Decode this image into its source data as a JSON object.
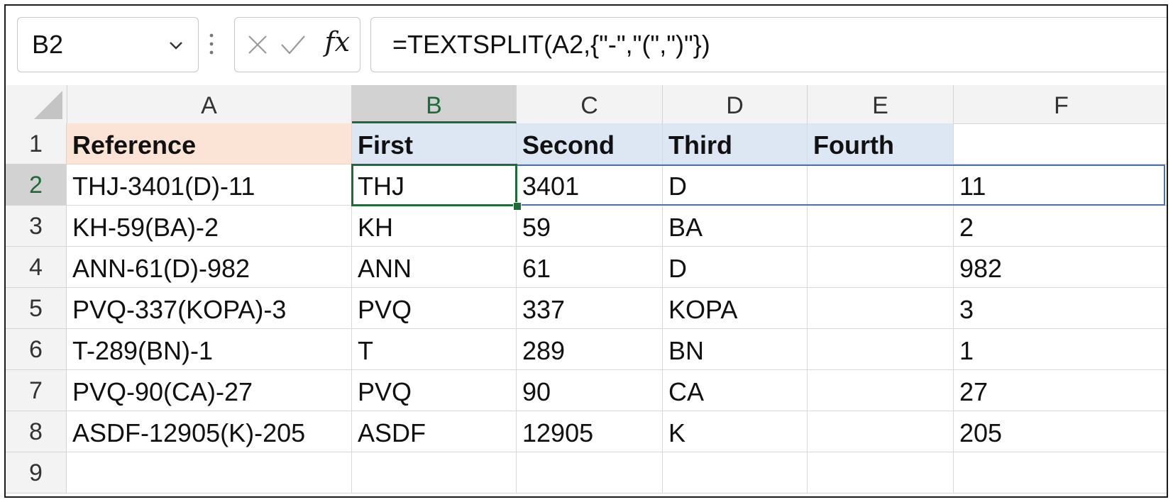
{
  "name_box": {
    "value": "B2",
    "dropdown_icon": "chevron-down-icon"
  },
  "formula_bar": {
    "cancel_icon": "close-icon",
    "enter_icon": "checkmark-icon",
    "fx_label": "fx",
    "formula": "=TEXTSPLIT(A2,{\"-\",\"(\",\")\"})"
  },
  "columns": [
    "A",
    "B",
    "C",
    "D",
    "E",
    "F"
  ],
  "active_column": "B",
  "active_row": "2",
  "rows": [
    {
      "num": "1",
      "cells": [
        "Reference",
        "First",
        "Second",
        "Third",
        "Fourth",
        ""
      ]
    },
    {
      "num": "2",
      "cells": [
        "THJ-3401(D)-11",
        "THJ",
        "3401",
        "D",
        "",
        "11"
      ]
    },
    {
      "num": "3",
      "cells": [
        "KH-59(BA)-2",
        "KH",
        "59",
        "BA",
        "",
        "2"
      ]
    },
    {
      "num": "4",
      "cells": [
        "ANN-61(D)-982",
        "ANN",
        "61",
        "D",
        "",
        "982"
      ]
    },
    {
      "num": "5",
      "cells": [
        "PVQ-337(KOPA)-3",
        "PVQ",
        "337",
        "KOPA",
        "",
        "3"
      ]
    },
    {
      "num": "6",
      "cells": [
        "T-289(BN)-1",
        "T",
        "289",
        "BN",
        "",
        "1"
      ]
    },
    {
      "num": "7",
      "cells": [
        "PVQ-90(CA)-27",
        "PVQ",
        "90",
        "CA",
        "",
        "27"
      ]
    },
    {
      "num": "8",
      "cells": [
        "ASDF-12905(K)-205",
        "ASDF",
        "12905",
        "K",
        "",
        "205"
      ]
    },
    {
      "num": "9",
      "cells": [
        "",
        "",
        "",
        "",
        "",
        ""
      ]
    }
  ],
  "colors": {
    "reference_header_fill": "#fbe4d5",
    "split_header_fill": "#dde7f3",
    "active_cell_border": "#1e6b3a",
    "spill_range_border": "#4a6fb5"
  }
}
